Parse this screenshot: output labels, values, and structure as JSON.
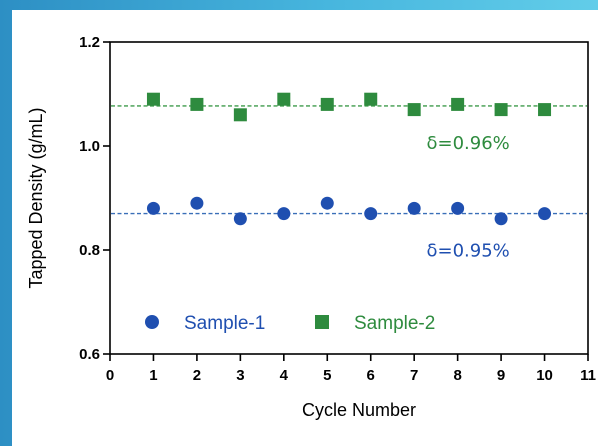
{
  "chart_data": {
    "type": "scatter",
    "title": "",
    "xlabel": "Cycle Number",
    "ylabel": "Tapped Density (g/mL)",
    "xlim": [
      0,
      11
    ],
    "ylim": [
      0.6,
      1.2
    ],
    "x_ticks": [
      0,
      1,
      2,
      3,
      4,
      5,
      6,
      7,
      8,
      9,
      10,
      11
    ],
    "y_ticks": [
      "0.6",
      "0.8",
      "1.0",
      "1.2"
    ],
    "grid": false,
    "legend_position": "bottom-left",
    "series": [
      {
        "name": "Sample-1",
        "marker": "circle",
        "color": "#1f4fb0",
        "x": [
          1,
          2,
          3,
          4,
          5,
          6,
          7,
          8,
          9,
          10
        ],
        "y": [
          0.88,
          0.89,
          0.86,
          0.87,
          0.89,
          0.87,
          0.88,
          0.88,
          0.86,
          0.87
        ],
        "mean_line": 0.87,
        "mean_line_color": "#3a6fb8",
        "annotation": "δ=0.95%"
      },
      {
        "name": "Sample-2",
        "marker": "square",
        "color": "#2e8b3e",
        "x": [
          1,
          2,
          3,
          4,
          5,
          6,
          7,
          8,
          9,
          10
        ],
        "y": [
          1.09,
          1.08,
          1.06,
          1.09,
          1.08,
          1.09,
          1.07,
          1.08,
          1.07,
          1.07
        ],
        "mean_line": 1.077,
        "mean_line_color": "#3d9a4a",
        "annotation": "δ=0.96%"
      }
    ]
  }
}
